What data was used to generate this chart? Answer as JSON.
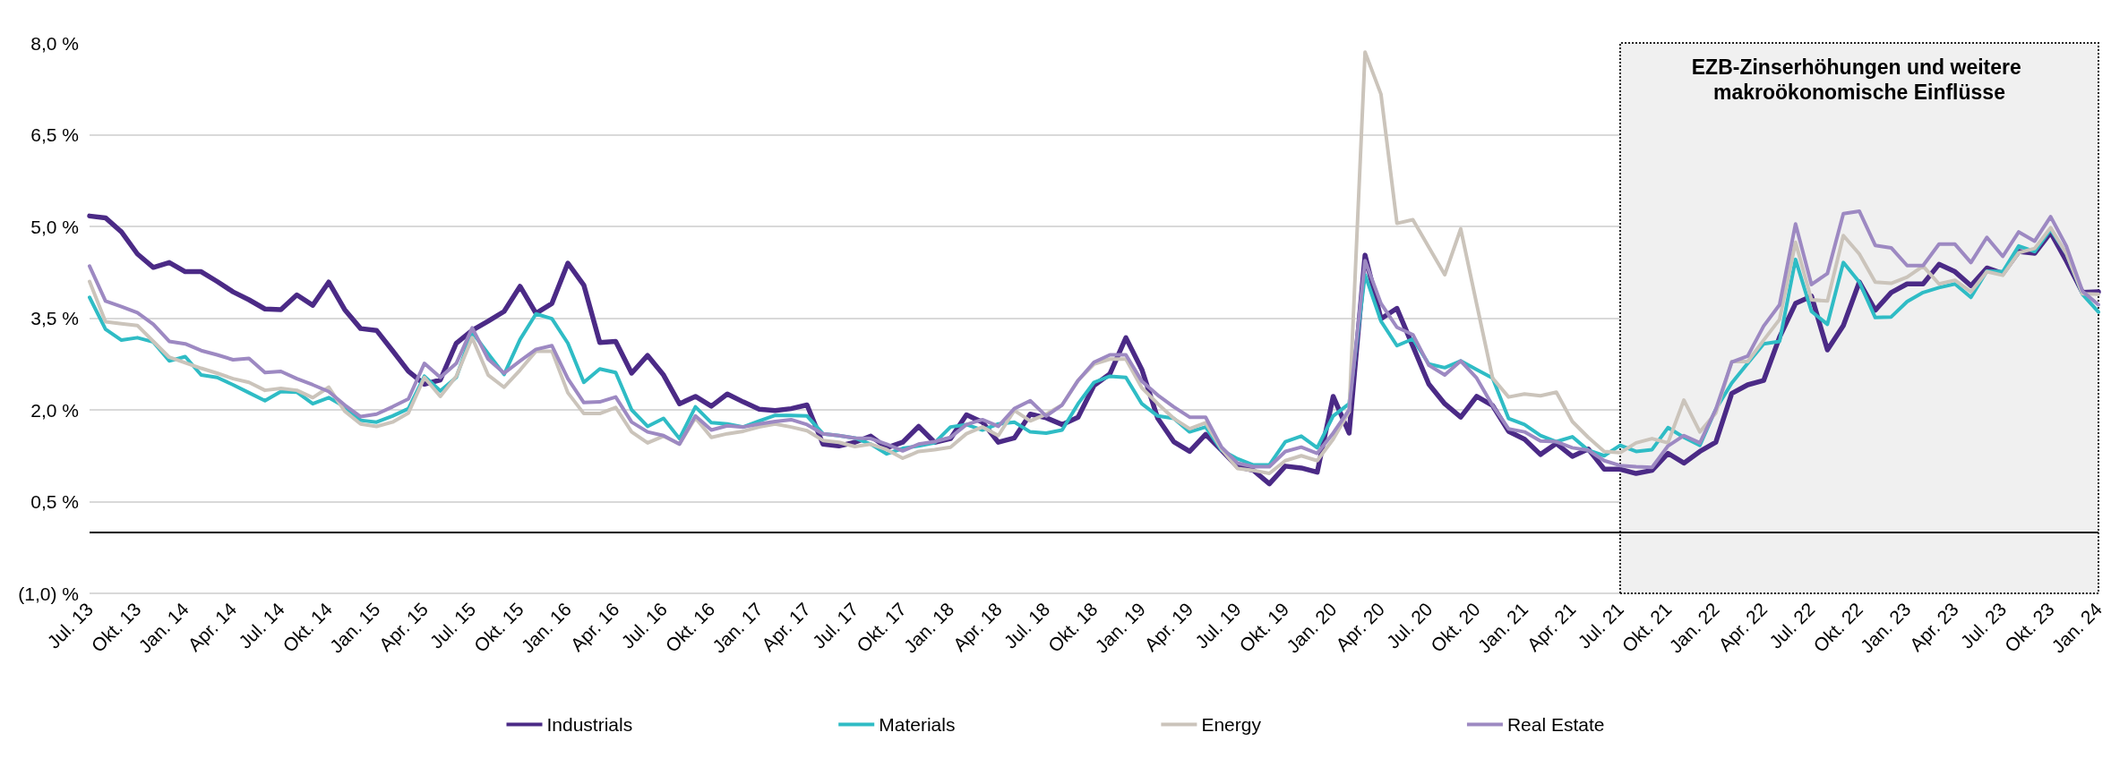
{
  "chart_data": {
    "type": "line",
    "categories": [
      "Jul. 13",
      null,
      null,
      "Okt. 13",
      null,
      null,
      "Jan. 14",
      null,
      null,
      "Apr. 14",
      null,
      null,
      "Jul. 14",
      null,
      null,
      "Okt. 14",
      null,
      null,
      "Jan. 15",
      null,
      null,
      "Apr. 15",
      null,
      null,
      "Jul. 15",
      null,
      null,
      "Okt. 15",
      null,
      null,
      "Jan. 16",
      null,
      null,
      "Apr. 16",
      null,
      null,
      "Jul. 16",
      null,
      null,
      "Okt. 16",
      null,
      null,
      "Jan. 17",
      null,
      null,
      "Apr. 17",
      null,
      null,
      "Jul. 17",
      null,
      null,
      "Okt. 17",
      null,
      null,
      "Jan. 18",
      null,
      null,
      "Apr. 18",
      null,
      null,
      "Jul. 18",
      null,
      null,
      "Okt. 18",
      null,
      null,
      "Jan. 19",
      null,
      null,
      "Apr. 19",
      null,
      null,
      "Jul. 19",
      null,
      null,
      "Okt. 19",
      null,
      null,
      "Jan. 20",
      null,
      null,
      "Apr. 20",
      null,
      null,
      "Jul. 20",
      null,
      null,
      "Okt. 20",
      null,
      null,
      "Jan. 21",
      null,
      null,
      "Apr. 21",
      null,
      null,
      "Jul. 21",
      null,
      null,
      "Okt. 21",
      null,
      null,
      "Jan. 22",
      null,
      null,
      "Apr. 22",
      null,
      null,
      "Jul. 22",
      null,
      null,
      "Okt. 22",
      null,
      null,
      "Jan. 23",
      null,
      null,
      "Apr. 23",
      null,
      null,
      "Jul. 23",
      null,
      null,
      "Okt. 23",
      null,
      null,
      "Jan. 24"
    ],
    "series": [
      {
        "name": "Industrials",
        "color": "#4b2a86",
        "values": [
          5.17,
          5.14,
          4.91,
          4.55,
          4.33,
          4.41,
          4.26,
          4.26,
          4.1,
          3.93,
          3.8,
          3.65,
          3.64,
          3.88,
          3.71,
          4.09,
          3.64,
          3.33,
          3.3,
          2.97,
          2.63,
          2.42,
          2.49,
          3.09,
          3.3,
          3.45,
          3.61,
          4.02,
          3.58,
          3.74,
          4.4,
          4.04,
          3.1,
          3.12,
          2.6,
          2.89,
          2.57,
          2.1,
          2.22,
          2.06,
          2.26,
          2.13,
          2.01,
          1.99,
          2.02,
          2.08,
          1.44,
          1.41,
          1.47,
          1.57,
          1.38,
          1.47,
          1.73,
          1.47,
          1.53,
          1.92,
          1.8,
          1.47,
          1.54,
          1.93,
          1.87,
          1.76,
          1.88,
          2.4,
          2.59,
          3.18,
          2.66,
          1.86,
          1.48,
          1.32,
          1.6,
          1.34,
          1.07,
          1.01,
          0.79,
          1.08,
          1.05,
          0.98,
          2.22,
          1.62,
          4.53,
          3.49,
          3.66,
          3.04,
          2.42,
          2.1,
          1.88,
          2.22,
          2.07,
          1.65,
          1.52,
          1.27,
          1.45,
          1.24,
          1.36,
          1.03,
          1.03,
          0.96,
          1.01,
          1.29,
          1.13,
          1.32,
          1.47,
          2.27,
          2.41,
          2.48,
          3.19,
          3.74,
          3.86,
          2.98,
          3.38,
          4.09,
          3.63,
          3.92,
          4.06,
          4.06,
          4.38,
          4.26,
          4.03,
          4.32,
          4.23,
          4.59,
          4.56,
          4.9,
          4.43,
          3.92,
          3.93
        ]
      },
      {
        "name": "Materials",
        "color": "#2fbcc5",
        "values": [
          3.84,
          3.32,
          3.14,
          3.18,
          3.11,
          2.8,
          2.87,
          2.57,
          2.53,
          2.41,
          2.28,
          2.15,
          2.3,
          2.29,
          2.1,
          2.2,
          2.05,
          1.83,
          1.8,
          1.9,
          2.02,
          2.55,
          2.31,
          2.53,
          3.27,
          2.92,
          2.58,
          3.15,
          3.57,
          3.49,
          3.09,
          2.45,
          2.67,
          2.61,
          2.0,
          1.73,
          1.86,
          1.53,
          2.05,
          1.79,
          1.77,
          1.72,
          1.82,
          1.91,
          1.91,
          1.9,
          1.61,
          1.58,
          1.54,
          1.44,
          1.28,
          1.37,
          1.41,
          1.46,
          1.72,
          1.76,
          1.67,
          1.77,
          1.8,
          1.64,
          1.62,
          1.67,
          2.1,
          2.45,
          2.55,
          2.53,
          2.1,
          1.9,
          1.86,
          1.64,
          1.72,
          1.34,
          1.2,
          1.1,
          1.1,
          1.48,
          1.57,
          1.38,
          1.9,
          2.1,
          4.21,
          3.45,
          3.05,
          3.16,
          2.75,
          2.69,
          2.8,
          2.66,
          2.52,
          1.86,
          1.76,
          1.58,
          1.48,
          1.56,
          1.34,
          1.25,
          1.42,
          1.32,
          1.35,
          1.71,
          1.55,
          1.42,
          2.01,
          2.44,
          2.76,
          3.08,
          3.12,
          4.46,
          3.61,
          3.4,
          4.41,
          4.09,
          3.51,
          3.52,
          3.77,
          3.92,
          4.0,
          4.06,
          3.84,
          4.27,
          4.26,
          4.68,
          4.59,
          4.95,
          4.55,
          3.89,
          3.6
        ]
      },
      {
        "name": "Energy",
        "color": "#cbc4bb",
        "values": [
          4.1,
          3.44,
          3.41,
          3.38,
          3.12,
          2.86,
          2.77,
          2.68,
          2.6,
          2.51,
          2.45,
          2.32,
          2.35,
          2.32,
          2.2,
          2.37,
          1.98,
          1.77,
          1.73,
          1.8,
          1.95,
          2.53,
          2.22,
          2.55,
          3.18,
          2.57,
          2.37,
          2.65,
          2.96,
          2.96,
          2.28,
          1.94,
          1.94,
          2.04,
          1.64,
          1.46,
          1.57,
          1.44,
          1.87,
          1.55,
          1.61,
          1.65,
          1.72,
          1.77,
          1.72,
          1.66,
          1.5,
          1.47,
          1.4,
          1.44,
          1.35,
          1.21,
          1.32,
          1.35,
          1.39,
          1.61,
          1.72,
          1.58,
          1.99,
          1.82,
          1.93,
          2.08,
          2.48,
          2.75,
          2.83,
          2.83,
          2.36,
          2.1,
          1.86,
          1.69,
          1.79,
          1.36,
          1.04,
          1.01,
          0.96,
          1.17,
          1.25,
          1.17,
          1.52,
          1.97,
          7.85,
          7.16,
          5.05,
          5.11,
          4.66,
          4.21,
          4.96,
          3.73,
          2.52,
          2.21,
          2.26,
          2.23,
          2.29,
          1.81,
          1.55,
          1.32,
          1.3,
          1.46,
          1.53,
          1.46,
          2.16,
          1.64,
          1.95,
          2.79,
          2.79,
          3.14,
          3.48,
          4.74,
          3.8,
          3.78,
          4.85,
          4.55,
          4.09,
          4.07,
          4.17,
          4.35,
          4.06,
          4.12,
          3.93,
          4.26,
          4.2,
          4.57,
          4.64,
          4.98,
          4.55,
          3.9,
          3.89
        ]
      },
      {
        "name": "Real Estate",
        "color": "#9d89c2",
        "values": [
          4.35,
          3.78,
          3.69,
          3.59,
          3.4,
          3.12,
          3.08,
          2.97,
          2.9,
          2.82,
          2.84,
          2.61,
          2.63,
          2.51,
          2.41,
          2.3,
          2.08,
          1.89,
          1.93,
          2.05,
          2.18,
          2.76,
          2.53,
          2.76,
          3.34,
          2.83,
          2.6,
          2.8,
          2.99,
          3.05,
          2.51,
          2.12,
          2.13,
          2.21,
          1.8,
          1.64,
          1.58,
          1.44,
          1.9,
          1.67,
          1.74,
          1.72,
          1.77,
          1.81,
          1.84,
          1.76,
          1.61,
          1.58,
          1.54,
          1.53,
          1.44,
          1.33,
          1.44,
          1.48,
          1.55,
          1.76,
          1.84,
          1.73,
          2.02,
          2.15,
          1.9,
          2.08,
          2.48,
          2.78,
          2.9,
          2.9,
          2.47,
          2.24,
          2.05,
          1.88,
          1.88,
          1.39,
          1.13,
          1.07,
          1.07,
          1.32,
          1.39,
          1.29,
          1.62,
          2.0,
          4.44,
          3.74,
          3.35,
          3.23,
          2.73,
          2.57,
          2.8,
          2.52,
          2.07,
          1.69,
          1.64,
          1.49,
          1.48,
          1.38,
          1.34,
          1.17,
          1.09,
          1.07,
          1.06,
          1.41,
          1.58,
          1.46,
          2.01,
          2.78,
          2.88,
          3.37,
          3.72,
          5.04,
          4.05,
          4.23,
          5.21,
          5.25,
          4.69,
          4.65,
          4.36,
          4.36,
          4.71,
          4.71,
          4.41,
          4.82,
          4.51,
          4.91,
          4.76,
          5.16,
          4.67,
          3.94,
          3.72
        ]
      }
    ],
    "ylim": [
      -1,
      8
    ],
    "yticks": [
      {
        "value": -1,
        "label": "(1,0) %"
      },
      {
        "value": 0.5,
        "label": "0,5 %"
      },
      {
        "value": 2,
        "label": "2,0 %"
      },
      {
        "value": 3.5,
        "label": "3,5 %"
      },
      {
        "value": 5,
        "label": "5,0 %"
      },
      {
        "value": 6.5,
        "label": "6,5 %"
      },
      {
        "value": 8,
        "label": "8,0 %"
      }
    ],
    "ref_lines": [
      {
        "axis": "y",
        "value": 0,
        "color": "#000000"
      }
    ],
    "bands": [
      {
        "axis": "x",
        "from": "Jul. 21",
        "to": "Jan. 24",
        "label": "EZB-Zinserhöhungen und weitere makroökonomische Einflüsse",
        "color": "#f0f0f0"
      }
    ],
    "grid": "y",
    "legend": "bottom",
    "marker": "none",
    "line_style": "solid"
  }
}
